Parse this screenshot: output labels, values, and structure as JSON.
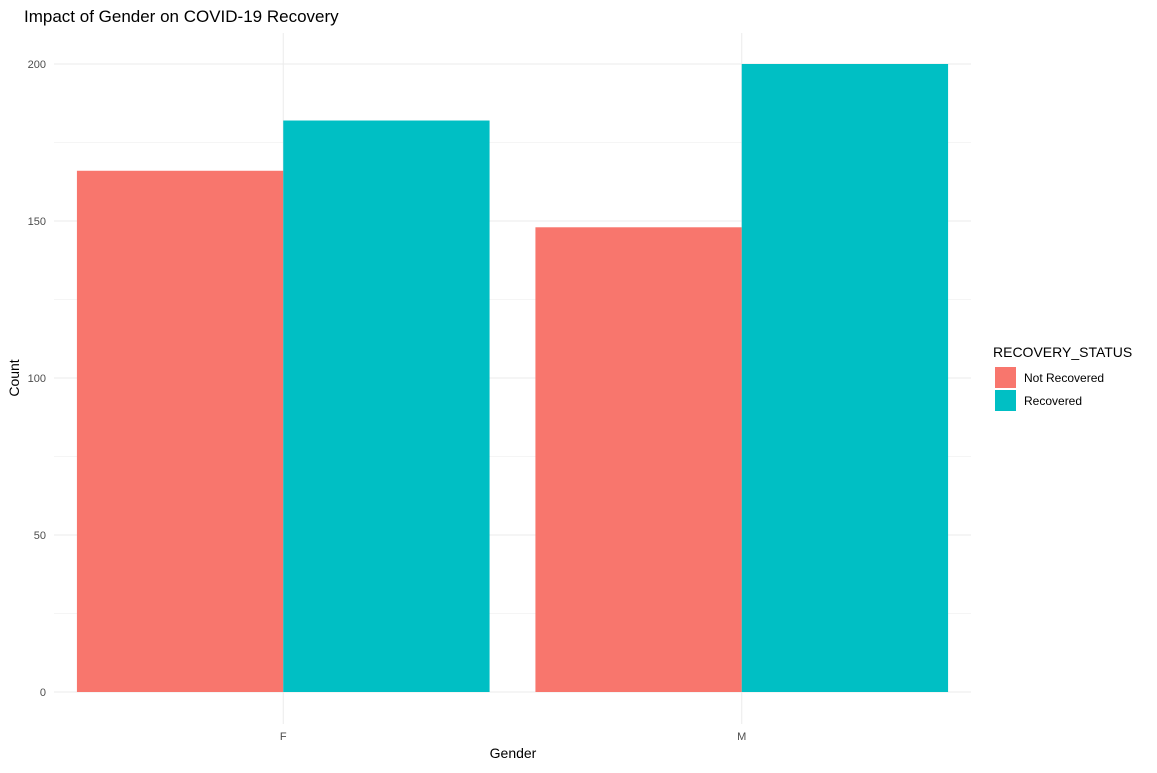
{
  "chart_data": {
    "type": "bar",
    "title": "Impact of Gender on COVID-19 Recovery",
    "xlabel": "Gender",
    "ylabel": "Count",
    "categories": [
      "F",
      "M"
    ],
    "series": [
      {
        "name": "Not Recovered",
        "color": "#F8766D",
        "values": [
          166,
          148
        ]
      },
      {
        "name": "Recovered",
        "color": "#00BFC4",
        "values": [
          182,
          200
        ]
      }
    ],
    "ylim": [
      0,
      210
    ],
    "yticks": [
      0,
      50,
      100,
      150,
      200
    ],
    "yticks_labels": [
      "0",
      "50",
      "100",
      "150",
      "200"
    ],
    "legend": {
      "title": "RECOVERY_STATUS",
      "position": "right"
    },
    "grid": true
  }
}
